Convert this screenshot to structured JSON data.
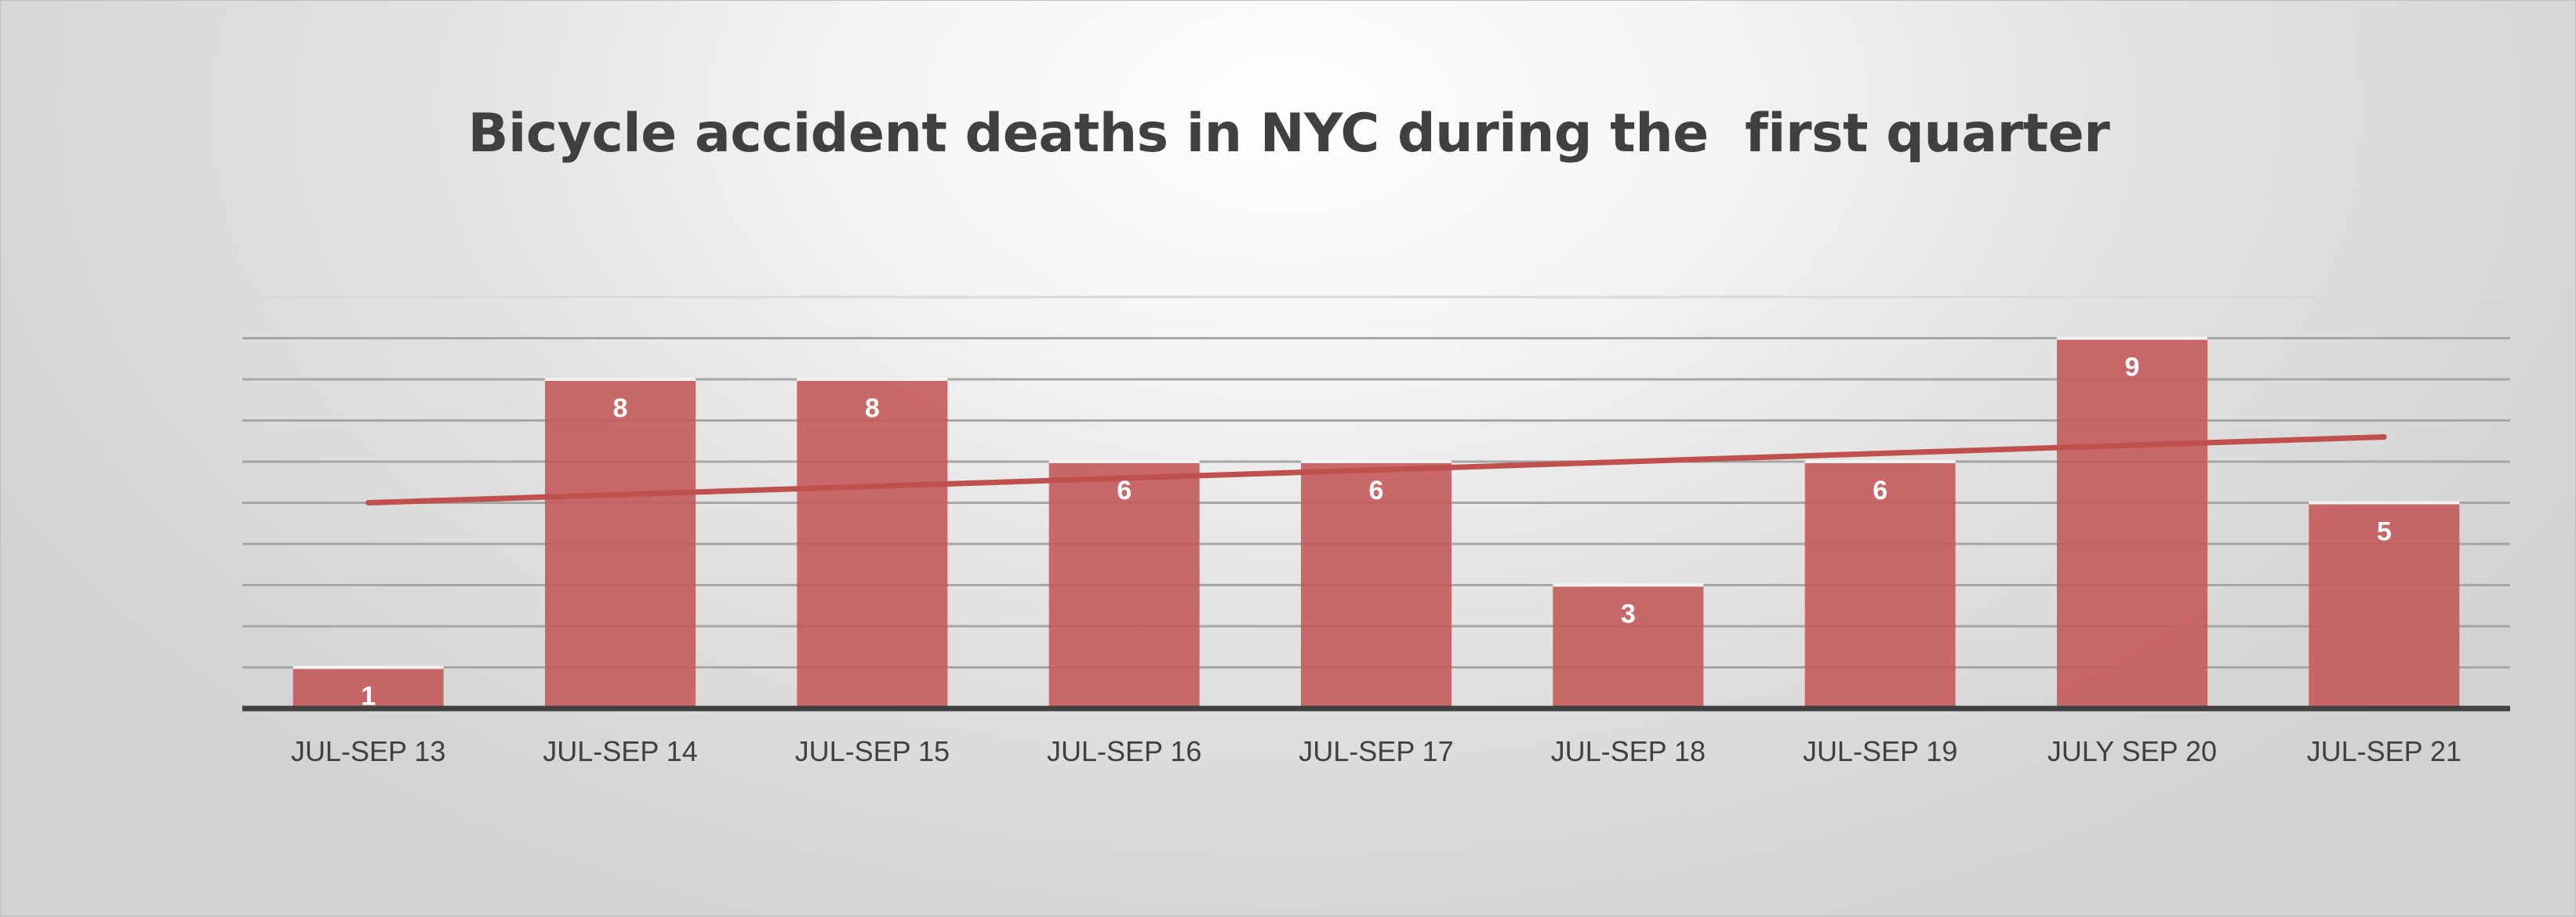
{
  "chart_data": {
    "type": "bar",
    "title": "Bicycle accident deaths in NYC during the  first quarter",
    "xlabel": "",
    "ylabel": "",
    "categories": [
      "JUL-SEP 13",
      "JUL-SEP 14",
      "JUL-SEP 15",
      "JUL-SEP 16",
      "JUL-SEP 17",
      "JUL-SEP 18",
      "JUL-SEP 19",
      "JULY SEP 20",
      "JUL-SEP 21"
    ],
    "series": [
      {
        "values": [
          1,
          8,
          8,
          6,
          6,
          3,
          6,
          9,
          5
        ]
      }
    ],
    "data_labels": [
      "1",
      "8",
      "8",
      "6",
      "6",
      "3",
      "6",
      "9",
      "5"
    ],
    "trendline": {
      "type": "linear",
      "start": 5.0,
      "end": 6.6
    },
    "ylim": [
      0,
      10
    ],
    "y_axis_visible": false,
    "grid": true,
    "legend": "none",
    "colors": {
      "bar": "#c55a5a",
      "trendline": "#c0504d",
      "title": "#404040",
      "axis": "#404040"
    }
  }
}
